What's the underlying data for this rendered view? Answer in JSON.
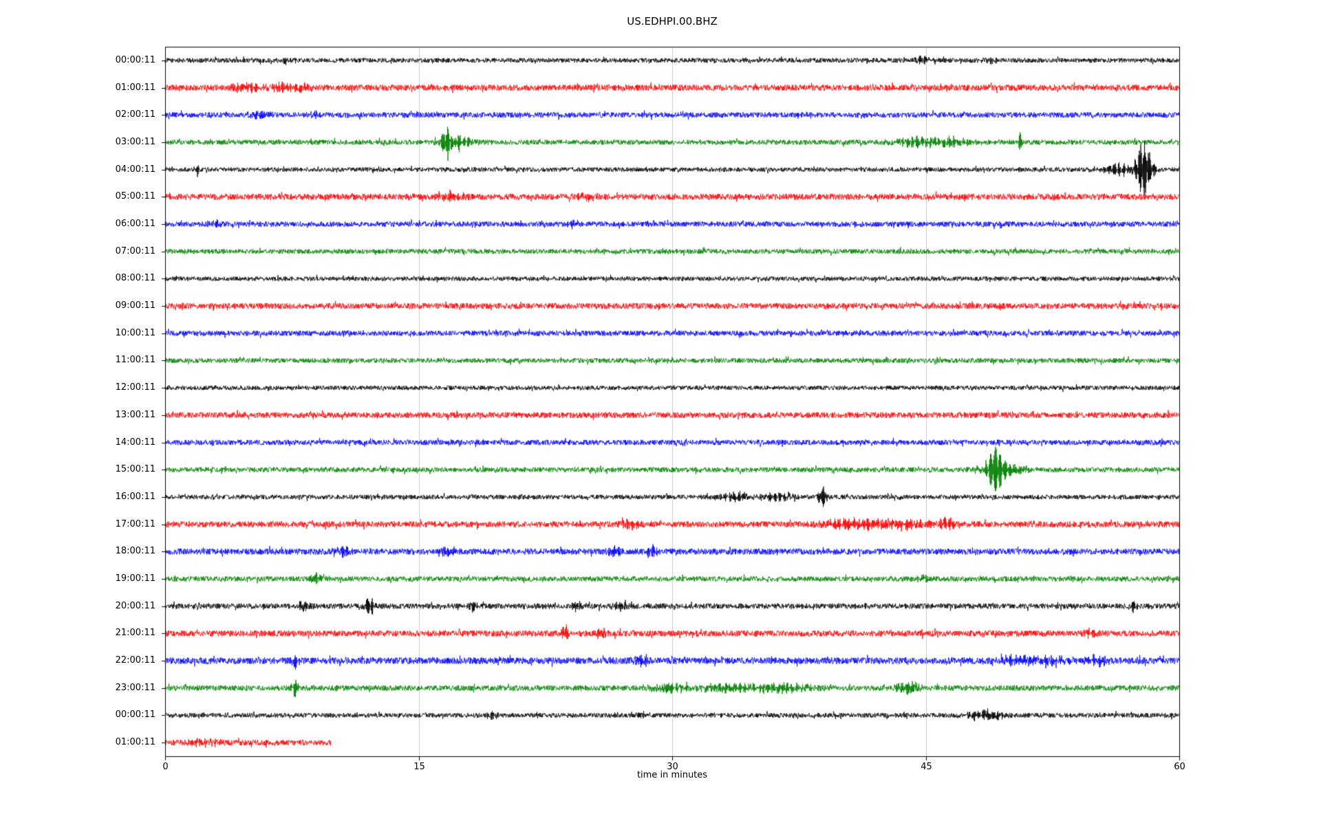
{
  "chart_data": {
    "type": "line",
    "subtype": "seismogram-dayplot",
    "title": "US.EDHPI.00.BHZ",
    "xlabel": "time in minutes",
    "x_range": [
      0,
      60
    ],
    "x_ticks": [
      0,
      15,
      30,
      45,
      60
    ],
    "gridlines_x": [
      15,
      30,
      45
    ],
    "grid_color": "#cccccc",
    "frame_color": "#000000",
    "background_color": "#ffffff",
    "color_cycle": [
      "#000000",
      "#ff0000",
      "#0000ff",
      "#008000"
    ],
    "traces": [
      {
        "label": "00:00:11",
        "color": "#000000",
        "noise": 3.4,
        "extent": [
          0,
          60
        ],
        "events": [
          {
            "t": 7.2,
            "amp": 5,
            "w": 0.3
          },
          {
            "t": 44.8,
            "amp": 5,
            "w": 0.4
          },
          {
            "t": 48.9,
            "amp": 4,
            "w": 0.3
          }
        ]
      },
      {
        "label": "01:00:11",
        "color": "#ff0000",
        "noise": 4.4,
        "extent": [
          0,
          60
        ],
        "events": [
          {
            "t": 5.0,
            "amp": 6,
            "w": 0.8
          },
          {
            "t": 6.6,
            "amp": 7,
            "w": 0.4
          },
          {
            "t": 8.0,
            "amp": 6,
            "w": 0.5
          }
        ]
      },
      {
        "label": "02:00:11",
        "color": "#0000ff",
        "noise": 3.9,
        "extent": [
          0,
          60
        ],
        "events": [
          {
            "t": 5.5,
            "amp": 5,
            "w": 0.5
          },
          {
            "t": 9.0,
            "amp": 4,
            "w": 0.4
          }
        ]
      },
      {
        "label": "03:00:11",
        "color": "#008000",
        "noise": 3.6,
        "extent": [
          0,
          60
        ],
        "events": [
          {
            "t": 16.7,
            "amp": 34,
            "w": 0.25
          },
          {
            "t": 17.0,
            "amp": 14,
            "w": 0.7
          },
          {
            "t": 44.2,
            "amp": 9,
            "w": 0.9
          },
          {
            "t": 46.0,
            "amp": 8,
            "w": 1.2
          },
          {
            "t": 50.6,
            "amp": 13,
            "w": 0.12
          }
        ]
      },
      {
        "label": "04:00:11",
        "color": "#000000",
        "noise": 3.2,
        "extent": [
          0,
          60
        ],
        "events": [
          {
            "t": 1.86,
            "amp": 15,
            "w": 0.07
          },
          {
            "t": 56.6,
            "amp": 9,
            "w": 0.7
          },
          {
            "t": 57.9,
            "amp": 46,
            "w": 0.35
          }
        ]
      },
      {
        "label": "05:00:11",
        "color": "#ff0000",
        "noise": 4.4,
        "extent": [
          0,
          60
        ],
        "events": [
          {
            "t": 17.0,
            "amp": 6,
            "w": 0.6
          },
          {
            "t": 25.0,
            "amp": 5,
            "w": 0.5
          }
        ]
      },
      {
        "label": "06:00:11",
        "color": "#0000ff",
        "noise": 3.8,
        "extent": [
          0,
          60
        ],
        "events": [
          {
            "t": 3.0,
            "amp": 5,
            "w": 0.3
          },
          {
            "t": 24.2,
            "amp": 5,
            "w": 0.3
          }
        ]
      },
      {
        "label": "07:00:11",
        "color": "#008000",
        "noise": 3.5,
        "extent": [
          0,
          60
        ],
        "events": []
      },
      {
        "label": "08:00:11",
        "color": "#000000",
        "noise": 3.2,
        "extent": [
          0,
          60
        ],
        "events": []
      },
      {
        "label": "09:00:11",
        "color": "#ff0000",
        "noise": 4.2,
        "extent": [
          0,
          60
        ],
        "events": []
      },
      {
        "label": "10:00:11",
        "color": "#0000ff",
        "noise": 3.8,
        "extent": [
          0,
          60
        ],
        "events": []
      },
      {
        "label": "11:00:11",
        "color": "#008000",
        "noise": 3.5,
        "extent": [
          0,
          60
        ],
        "events": []
      },
      {
        "label": "12:00:11",
        "color": "#000000",
        "noise": 3.2,
        "extent": [
          0,
          60
        ],
        "events": []
      },
      {
        "label": "13:00:11",
        "color": "#ff0000",
        "noise": 4.2,
        "extent": [
          0,
          60
        ],
        "events": []
      },
      {
        "label": "14:00:11",
        "color": "#0000ff",
        "noise": 3.8,
        "extent": [
          0,
          60
        ],
        "events": []
      },
      {
        "label": "15:00:11",
        "color": "#008000",
        "noise": 3.6,
        "extent": [
          0,
          60
        ],
        "events": [
          {
            "t": 49.1,
            "amp": 34,
            "w": 0.3
          },
          {
            "t": 49.6,
            "amp": 12,
            "w": 0.8
          }
        ]
      },
      {
        "label": "16:00:11",
        "color": "#000000",
        "noise": 3.3,
        "extent": [
          0,
          60
        ],
        "events": [
          {
            "t": 33.9,
            "amp": 7,
            "w": 0.7
          },
          {
            "t": 36.2,
            "amp": 5,
            "w": 0.9
          },
          {
            "t": 38.9,
            "amp": 15,
            "w": 0.18
          }
        ]
      },
      {
        "label": "17:00:11",
        "color": "#ff0000",
        "noise": 4.3,
        "extent": [
          0,
          60
        ],
        "events": [
          {
            "t": 27.5,
            "amp": 7,
            "w": 0.35
          },
          {
            "t": 40.2,
            "amp": 7,
            "w": 1.2
          },
          {
            "t": 43.6,
            "amp": 8,
            "w": 1.4
          },
          {
            "t": 46.3,
            "amp": 11,
            "w": 0.4
          }
        ]
      },
      {
        "label": "18:00:11",
        "color": "#0000ff",
        "noise": 4.4,
        "extent": [
          0,
          60
        ],
        "events": [
          {
            "t": 10.6,
            "amp": 7,
            "w": 0.35
          },
          {
            "t": 16.7,
            "amp": 7,
            "w": 0.4
          },
          {
            "t": 26.6,
            "amp": 11,
            "w": 0.25
          },
          {
            "t": 28.8,
            "amp": 7,
            "w": 0.3
          }
        ]
      },
      {
        "label": "19:00:11",
        "color": "#008000",
        "noise": 3.7,
        "extent": [
          0,
          60
        ],
        "events": [
          {
            "t": 9.0,
            "amp": 7,
            "w": 0.25
          },
          {
            "t": 44.9,
            "amp": 6,
            "w": 0.25
          }
        ]
      },
      {
        "label": "20:00:11",
        "color": "#000000",
        "noise": 3.9,
        "extent": [
          0,
          60
        ],
        "events": [
          {
            "t": 8.2,
            "amp": 7,
            "w": 0.35
          },
          {
            "t": 12.1,
            "amp": 13,
            "w": 0.25
          },
          {
            "t": 18.2,
            "amp": 9,
            "w": 0.18
          },
          {
            "t": 24.4,
            "amp": 7,
            "w": 0.25
          },
          {
            "t": 26.9,
            "amp": 6,
            "w": 0.3
          },
          {
            "t": 57.3,
            "amp": 10,
            "w": 0.15
          }
        ]
      },
      {
        "label": "21:00:11",
        "color": "#ff0000",
        "noise": 4.4,
        "extent": [
          0,
          60
        ],
        "events": [
          {
            "t": 23.7,
            "amp": 11,
            "w": 0.18
          },
          {
            "t": 25.8,
            "amp": 8,
            "w": 0.25
          },
          {
            "t": 54.8,
            "amp": 7,
            "w": 0.3
          }
        ]
      },
      {
        "label": "22:00:11",
        "color": "#0000ff",
        "noise": 4.8,
        "extent": [
          0,
          60
        ],
        "events": [
          {
            "t": 7.7,
            "amp": 11,
            "w": 0.15
          },
          {
            "t": 28.2,
            "amp": 11,
            "w": 0.3
          },
          {
            "t": 50.6,
            "amp": 8,
            "w": 0.8
          },
          {
            "t": 52.4,
            "amp": 8,
            "w": 0.7
          },
          {
            "t": 55.1,
            "amp": 7,
            "w": 0.5
          }
        ]
      },
      {
        "label": "23:00:11",
        "color": "#008000",
        "noise": 4.0,
        "extent": [
          0,
          60
        ],
        "events": [
          {
            "t": 7.7,
            "amp": 15,
            "w": 0.15
          },
          {
            "t": 30.0,
            "amp": 7,
            "w": 0.9
          },
          {
            "t": 33.2,
            "amp": 6,
            "w": 1.4
          },
          {
            "t": 36.6,
            "amp": 7,
            "w": 1.2
          },
          {
            "t": 43.9,
            "amp": 9,
            "w": 0.5
          }
        ]
      },
      {
        "label": "00:00:11",
        "color": "#000000",
        "noise": 3.4,
        "extent": [
          0,
          60
        ],
        "events": [
          {
            "t": 19.4,
            "amp": 5,
            "w": 0.25
          },
          {
            "t": 28.1,
            "amp": 5,
            "w": 0.2
          },
          {
            "t": 48.5,
            "amp": 9,
            "w": 0.7
          }
        ]
      },
      {
        "label": "01:00:11",
        "color": "#ff0000",
        "noise": 4.2,
        "extent": [
          0,
          9.8
        ],
        "events": [
          {
            "t": 2.2,
            "amp": 6,
            "w": 0.6
          }
        ]
      }
    ]
  }
}
